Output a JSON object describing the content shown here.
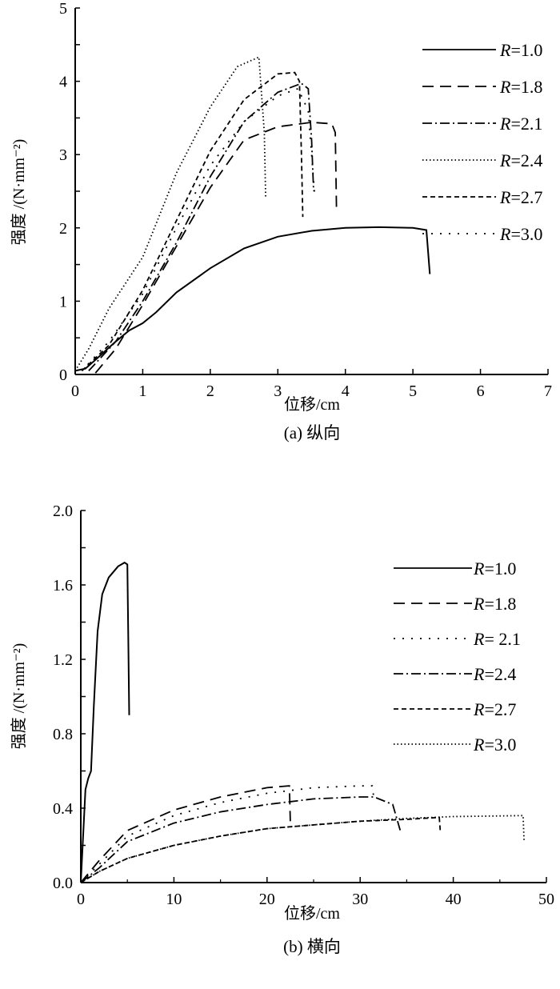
{
  "chart_data": [
    {
      "type": "line",
      "caption": "(a) 纵向",
      "xlabel": "位移/cm",
      "ylabel": "强度 /(N·mm⁻²)",
      "xlim": [
        0,
        7
      ],
      "ylim": [
        0,
        5
      ],
      "xticks": [
        0,
        1,
        2,
        3,
        4,
        5,
        6,
        7
      ],
      "yticks": [
        0,
        1,
        2,
        3,
        4,
        5
      ],
      "legend_position": "right",
      "grid": false,
      "series": [
        {
          "name": "R=1.0",
          "label_r": "R",
          "label_v": "=1.0",
          "style": "solid",
          "points": [
            [
              0,
              0.05
            ],
            [
              0.15,
              0.08
            ],
            [
              0.3,
              0.2
            ],
            [
              0.6,
              0.45
            ],
            [
              0.8,
              0.6
            ],
            [
              1.0,
              0.7
            ],
            [
              1.2,
              0.85
            ],
            [
              1.5,
              1.12
            ],
            [
              2.0,
              1.45
            ],
            [
              2.5,
              1.72
            ],
            [
              3.0,
              1.88
            ],
            [
              3.5,
              1.96
            ],
            [
              4.0,
              2.0
            ],
            [
              4.5,
              2.01
            ],
            [
              5.0,
              2.0
            ],
            [
              5.2,
              1.97
            ],
            [
              5.25,
              1.37
            ]
          ]
        },
        {
          "name": "R=1.8",
          "label_r": "R",
          "label_v": "=1.8",
          "style": "longdash",
          "points": [
            [
              0.3,
              0.02
            ],
            [
              0.6,
              0.35
            ],
            [
              1.0,
              0.95
            ],
            [
              1.5,
              1.75
            ],
            [
              2.0,
              2.55
            ],
            [
              2.5,
              3.2
            ],
            [
              3.0,
              3.38
            ],
            [
              3.5,
              3.44
            ],
            [
              3.8,
              3.42
            ],
            [
              3.85,
              3.3
            ],
            [
              3.87,
              2.2
            ]
          ]
        },
        {
          "name": "R=2.1",
          "label_r": "R",
          "label_v": "=2.1",
          "style": "dashdot",
          "points": [
            [
              0.2,
              0.05
            ],
            [
              0.6,
              0.45
            ],
            [
              1.0,
              1.0
            ],
            [
              1.5,
              1.8
            ],
            [
              2.0,
              2.7
            ],
            [
              2.5,
              3.45
            ],
            [
              3.0,
              3.85
            ],
            [
              3.35,
              3.97
            ],
            [
              3.45,
              3.9
            ],
            [
              3.5,
              3.2
            ],
            [
              3.53,
              2.5
            ]
          ]
        },
        {
          "name": "R=2.4",
          "label_r": "R",
          "label_v": "=2.4",
          "style": "dotted",
          "points": [
            [
              0,
              0.05
            ],
            [
              0.2,
              0.35
            ],
            [
              0.5,
              0.9
            ],
            [
              1.0,
              1.6
            ],
            [
              1.5,
              2.75
            ],
            [
              2.0,
              3.65
            ],
            [
              2.4,
              4.2
            ],
            [
              2.72,
              4.33
            ],
            [
              2.8,
              3.3
            ],
            [
              2.82,
              2.4
            ]
          ]
        },
        {
          "name": "R=2.7",
          "label_r": "R",
          "label_v": "=2.7",
          "style": "shortdash",
          "points": [
            [
              0.1,
              0.05
            ],
            [
              0.5,
              0.4
            ],
            [
              1.0,
              1.15
            ],
            [
              1.5,
              2.1
            ],
            [
              2.0,
              3.05
            ],
            [
              2.5,
              3.75
            ],
            [
              3.0,
              4.1
            ],
            [
              3.25,
              4.12
            ],
            [
              3.32,
              4.0
            ],
            [
              3.35,
              3.0
            ],
            [
              3.37,
              2.15
            ]
          ]
        },
        {
          "name": "R=3.0",
          "label_r": "R",
          "label_v": "=3.0",
          "style": "sparsedot",
          "points": [
            [
              0.1,
              0.05
            ],
            [
              0.5,
              0.45
            ],
            [
              1.0,
              1.1
            ],
            [
              1.5,
              2.0
            ],
            [
              2.0,
              2.85
            ],
            [
              2.5,
              3.45
            ],
            [
              3.0,
              3.8
            ],
            [
              3.3,
              3.9
            ],
            [
              3.45,
              3.6
            ],
            [
              3.55,
              2.4
            ]
          ]
        }
      ]
    },
    {
      "type": "line",
      "caption": "(b) 横向",
      "xlabel": "位移/cm",
      "ylabel": "强度 /(N·mm⁻²)",
      "xlim": [
        0,
        50
      ],
      "ylim": [
        0,
        2.0
      ],
      "xticks": [
        0,
        10,
        20,
        30,
        40,
        50
      ],
      "xtick_labels": [
        "0",
        "10",
        "20",
        "30",
        "40",
        "50"
      ],
      "yticks": [
        0,
        0.4,
        0.8,
        1.2,
        1.6,
        2.0
      ],
      "ytick_labels": [
        "0.0",
        "0.4",
        "0.8",
        "1.2",
        "1.6",
        "2.0"
      ],
      "legend_position": "right",
      "grid": false,
      "series": [
        {
          "name": "R=1.0",
          "label_r": "R",
          "label_v": "=1.0",
          "style": "solid",
          "points": [
            [
              0,
              0
            ],
            [
              0.5,
              0.5
            ],
            [
              0.8,
              0.56
            ],
            [
              1.1,
              0.6
            ],
            [
              1.4,
              0.95
            ],
            [
              1.8,
              1.35
            ],
            [
              2.3,
              1.55
            ],
            [
              3.0,
              1.64
            ],
            [
              4.0,
              1.7
            ],
            [
              4.7,
              1.72
            ],
            [
              5.0,
              1.71
            ],
            [
              5.1,
              1.3
            ],
            [
              5.2,
              0.9
            ]
          ]
        },
        {
          "name": "R=1.8",
          "label_r": "R",
          "label_v": "=1.8",
          "style": "longdash",
          "points": [
            [
              0,
              0
            ],
            [
              2,
              0.12
            ],
            [
              5,
              0.28
            ],
            [
              10,
              0.39
            ],
            [
              15,
              0.46
            ],
            [
              20,
              0.51
            ],
            [
              22.4,
              0.52
            ],
            [
              22.5,
              0.33
            ]
          ]
        },
        {
          "name": "R=2.1",
          "label_r": "R",
          "label_v": "= 2.1",
          "style": "sparsedot",
          "points": [
            [
              0,
              0
            ],
            [
              2,
              0.1
            ],
            [
              5,
              0.25
            ],
            [
              10,
              0.36
            ],
            [
              15,
              0.43
            ],
            [
              20,
              0.48
            ],
            [
              25,
              0.51
            ],
            [
              30,
              0.52
            ],
            [
              31.3,
              0.52
            ],
            [
              31.5,
              0.44
            ]
          ]
        },
        {
          "name": "R=2.4",
          "label_r": "R",
          "label_v": "=2.4",
          "style": "dashdot",
          "points": [
            [
              0,
              0
            ],
            [
              2,
              0.08
            ],
            [
              5,
              0.22
            ],
            [
              10,
              0.32
            ],
            [
              15,
              0.38
            ],
            [
              20,
              0.42
            ],
            [
              25,
              0.45
            ],
            [
              30,
              0.46
            ],
            [
              31.5,
              0.46
            ],
            [
              33.5,
              0.42
            ],
            [
              34.3,
              0.28
            ]
          ]
        },
        {
          "name": "R=2.7",
          "label_r": "R",
          "label_v": "=2.7",
          "style": "shortdash",
          "points": [
            [
              0,
              0
            ],
            [
              2,
              0.06
            ],
            [
              5,
              0.13
            ],
            [
              10,
              0.2
            ],
            [
              15,
              0.25
            ],
            [
              20,
              0.29
            ],
            [
              25,
              0.31
            ],
            [
              30,
              0.33
            ],
            [
              35,
              0.34
            ],
            [
              38.5,
              0.35
            ],
            [
              38.6,
              0.28
            ]
          ]
        },
        {
          "name": "R=3.0",
          "label_r": "R",
          "label_v": "=3.0",
          "style": "dotted",
          "points": [
            [
              0,
              0
            ],
            [
              2,
              0.06
            ],
            [
              5,
              0.13
            ],
            [
              10,
              0.2
            ],
            [
              15,
              0.25
            ],
            [
              20,
              0.29
            ],
            [
              25,
              0.31
            ],
            [
              30,
              0.33
            ],
            [
              35,
              0.345
            ],
            [
              40,
              0.355
            ],
            [
              47.5,
              0.36
            ],
            [
              47.6,
              0.22
            ]
          ]
        }
      ]
    }
  ]
}
